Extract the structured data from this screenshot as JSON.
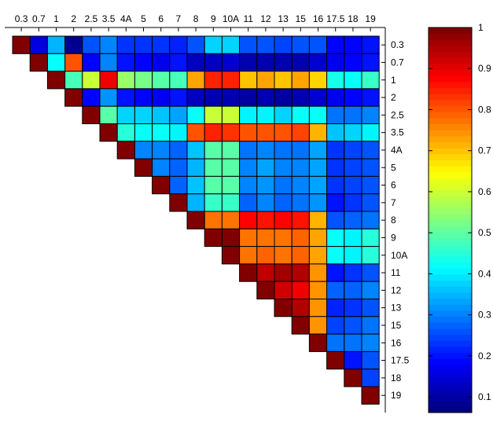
{
  "chart_data": {
    "type": "heatmap",
    "title": "",
    "colormap": "jet",
    "clim": [
      0.062,
      1
    ],
    "labels": [
      "0.3",
      "0.7",
      "1",
      "2",
      "2.5",
      "3.5",
      "4A",
      "5",
      "6",
      "7",
      "8",
      "9",
      "10A",
      "11",
      "12",
      "13",
      "15",
      "16",
      "17.5",
      "18",
      "19"
    ],
    "colorbar_ticks": [
      "0.1",
      "0.2",
      "0.3",
      "0.4",
      "0.5",
      "0.6",
      "0.7",
      "0.8",
      "0.9",
      "1"
    ],
    "upper_triangle_only": true,
    "matrix": [
      [
        1,
        0.15,
        0.35,
        0.08,
        0.25,
        0.3,
        0.22,
        0.22,
        0.22,
        0.21,
        0.25,
        0.38,
        0.38,
        0.25,
        0.25,
        0.24,
        0.25,
        0.25,
        0.18,
        0.18,
        0.2
      ],
      [
        null,
        1,
        0.42,
        0.8,
        0.18,
        0.3,
        0.2,
        0.18,
        0.17,
        0.2,
        0.12,
        0.12,
        0.13,
        0.1,
        0.11,
        0.1,
        0.11,
        0.13,
        0.17,
        0.18,
        0.2
      ],
      [
        null,
        null,
        1,
        0.48,
        0.6,
        0.9,
        0.55,
        0.52,
        0.5,
        0.48,
        0.73,
        0.85,
        0.85,
        0.7,
        0.73,
        0.7,
        0.73,
        0.68,
        0.43,
        0.42,
        0.47
      ],
      [
        null,
        null,
        null,
        1,
        0.18,
        0.32,
        0.2,
        0.18,
        0.16,
        0.2,
        0.12,
        0.1,
        0.11,
        0.09,
        0.1,
        0.09,
        0.1,
        0.13,
        0.17,
        0.18,
        0.2
      ],
      [
        null,
        null,
        null,
        null,
        1,
        0.5,
        0.38,
        0.37,
        0.36,
        0.33,
        0.42,
        0.6,
        0.6,
        0.4,
        0.4,
        0.38,
        0.42,
        0.42,
        0.28,
        0.28,
        0.3
      ],
      [
        null,
        null,
        null,
        null,
        null,
        1,
        0.45,
        0.42,
        0.42,
        0.4,
        0.8,
        0.85,
        0.83,
        0.8,
        0.8,
        0.8,
        0.82,
        0.72,
        0.36,
        0.37,
        0.4
      ],
      [
        null,
        null,
        null,
        null,
        null,
        null,
        1,
        0.3,
        0.3,
        0.27,
        0.36,
        0.5,
        0.5,
        0.28,
        0.3,
        0.28,
        0.28,
        0.33,
        0.23,
        0.24,
        0.26
      ],
      [
        null,
        null,
        null,
        null,
        null,
        null,
        null,
        1,
        0.3,
        0.27,
        0.35,
        0.5,
        0.5,
        0.3,
        0.33,
        0.3,
        0.3,
        0.33,
        0.23,
        0.24,
        0.26
      ],
      [
        null,
        null,
        null,
        null,
        null,
        null,
        null,
        null,
        1,
        0.27,
        0.36,
        0.5,
        0.5,
        0.3,
        0.32,
        0.29,
        0.3,
        0.33,
        0.23,
        0.24,
        0.26
      ],
      [
        null,
        null,
        null,
        null,
        null,
        null,
        null,
        null,
        null,
        1,
        0.34,
        0.47,
        0.47,
        0.27,
        0.3,
        0.27,
        0.28,
        0.31,
        0.2,
        0.22,
        0.25
      ],
      [
        null,
        null,
        null,
        null,
        null,
        null,
        null,
        null,
        null,
        null,
        1,
        0.78,
        0.78,
        0.88,
        0.86,
        0.88,
        0.86,
        0.72,
        0.26,
        0.27,
        0.29
      ],
      [
        null,
        null,
        null,
        null,
        null,
        null,
        null,
        null,
        null,
        null,
        null,
        1,
        1,
        0.77,
        0.78,
        0.77,
        0.79,
        0.73,
        0.42,
        0.41,
        0.45
      ],
      [
        null,
        null,
        null,
        null,
        null,
        null,
        null,
        null,
        null,
        null,
        null,
        null,
        1,
        0.77,
        0.79,
        0.77,
        0.79,
        0.73,
        0.42,
        0.41,
        0.45
      ],
      [
        null,
        null,
        null,
        null,
        null,
        null,
        null,
        null,
        null,
        null,
        null,
        null,
        null,
        1,
        0.94,
        0.97,
        0.95,
        0.74,
        0.2,
        0.22,
        0.26
      ],
      [
        null,
        null,
        null,
        null,
        null,
        null,
        null,
        null,
        null,
        null,
        null,
        null,
        null,
        null,
        1,
        0.93,
        0.9,
        0.74,
        0.27,
        0.27,
        0.3
      ],
      [
        null,
        null,
        null,
        null,
        null,
        null,
        null,
        null,
        null,
        null,
        null,
        null,
        null,
        null,
        null,
        1,
        0.95,
        0.74,
        0.21,
        0.23,
        0.26
      ],
      [
        null,
        null,
        null,
        null,
        null,
        null,
        null,
        null,
        null,
        null,
        null,
        null,
        null,
        null,
        null,
        null,
        1,
        0.74,
        0.24,
        0.26,
        0.28
      ],
      [
        null,
        null,
        null,
        null,
        null,
        null,
        null,
        null,
        null,
        null,
        null,
        null,
        null,
        null,
        null,
        null,
        null,
        1,
        0.28,
        0.29,
        0.3
      ],
      [
        null,
        null,
        null,
        null,
        null,
        null,
        null,
        null,
        null,
        null,
        null,
        null,
        null,
        null,
        null,
        null,
        null,
        null,
        1,
        0.2,
        0.25
      ],
      [
        null,
        null,
        null,
        null,
        null,
        null,
        null,
        null,
        null,
        null,
        null,
        null,
        null,
        null,
        null,
        null,
        null,
        null,
        null,
        1,
        0.24
      ],
      [
        null,
        null,
        null,
        null,
        null,
        null,
        null,
        null,
        null,
        null,
        null,
        null,
        null,
        null,
        null,
        null,
        null,
        null,
        null,
        null,
        1
      ]
    ]
  }
}
